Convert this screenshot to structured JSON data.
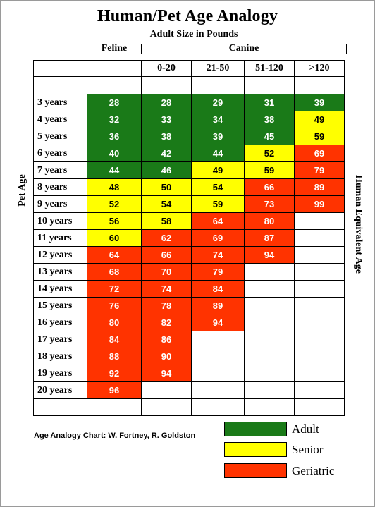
{
  "header": {
    "title": "Human/Pet Age Analogy",
    "subtitle": "Adult Size in Pounds",
    "feline_label": "Feline",
    "canine_label": "Canine"
  },
  "axes": {
    "left_label": "Pet Age",
    "right_label": "Human Equivalent Age"
  },
  "credit": "Age Analogy Chart:  W. Fortney, R. Goldston",
  "colors": {
    "adult": "#1a7a18",
    "senior": "#ffff00",
    "geriatric": "#ff3300"
  },
  "legend": [
    {
      "key": "adult",
      "label": "Adult"
    },
    {
      "key": "senior",
      "label": "Senior"
    },
    {
      "key": "geriatric",
      "label": "Geriatric"
    }
  ],
  "chart_data": {
    "type": "table",
    "title": "Human/Pet Age Analogy",
    "columns": [
      "Feline",
      "0-20",
      "21-50",
      "51-120",
      ">120"
    ],
    "column_headers": [
      "",
      "0-20",
      "21-50",
      "51-120",
      ">120"
    ],
    "row_labels": [
      "3 years",
      "4 years",
      "5 years",
      "6 years",
      "7 years",
      "8 years",
      "9 years",
      "10 years",
      "11 years",
      "12 years",
      "13 years",
      "14 years",
      "15 years",
      "16 years",
      "17 years",
      "18 years",
      "19 years",
      "20 years"
    ],
    "values": [
      [
        28,
        28,
        29,
        31,
        39
      ],
      [
        32,
        33,
        34,
        38,
        49
      ],
      [
        36,
        38,
        39,
        45,
        59
      ],
      [
        40,
        42,
        44,
        52,
        69
      ],
      [
        44,
        46,
        49,
        59,
        79
      ],
      [
        48,
        50,
        54,
        66,
        89
      ],
      [
        52,
        54,
        59,
        73,
        99
      ],
      [
        56,
        58,
        64,
        80,
        null
      ],
      [
        60,
        62,
        69,
        87,
        null
      ],
      [
        64,
        66,
        74,
        94,
        null
      ],
      [
        68,
        70,
        79,
        null,
        null
      ],
      [
        72,
        74,
        84,
        null,
        null
      ],
      [
        76,
        78,
        89,
        null,
        null
      ],
      [
        80,
        82,
        94,
        null,
        null
      ],
      [
        84,
        86,
        null,
        null,
        null
      ],
      [
        88,
        90,
        null,
        null,
        null
      ],
      [
        92,
        94,
        null,
        null,
        null
      ],
      [
        96,
        null,
        null,
        null,
        null
      ]
    ],
    "stages": [
      [
        "adult",
        "adult",
        "adult",
        "adult",
        "adult"
      ],
      [
        "adult",
        "adult",
        "adult",
        "adult",
        "senior"
      ],
      [
        "adult",
        "adult",
        "adult",
        "adult",
        "senior"
      ],
      [
        "adult",
        "adult",
        "adult",
        "senior",
        "geriatric"
      ],
      [
        "adult",
        "adult",
        "senior",
        "senior",
        "geriatric"
      ],
      [
        "senior",
        "senior",
        "senior",
        "geriatric",
        "geriatric"
      ],
      [
        "senior",
        "senior",
        "senior",
        "geriatric",
        "geriatric"
      ],
      [
        "senior",
        "senior",
        "geriatric",
        "geriatric",
        null
      ],
      [
        "senior",
        "geriatric",
        "geriatric",
        "geriatric",
        null
      ],
      [
        "geriatric",
        "geriatric",
        "geriatric",
        "geriatric",
        null
      ],
      [
        "geriatric",
        "geriatric",
        "geriatric",
        null,
        null
      ],
      [
        "geriatric",
        "geriatric",
        "geriatric",
        null,
        null
      ],
      [
        "geriatric",
        "geriatric",
        "geriatric",
        null,
        null
      ],
      [
        "geriatric",
        "geriatric",
        "geriatric",
        null,
        null
      ],
      [
        "geriatric",
        "geriatric",
        null,
        null,
        null
      ],
      [
        "geriatric",
        "geriatric",
        null,
        null,
        null
      ],
      [
        "geriatric",
        "geriatric",
        null,
        null,
        null
      ],
      [
        "geriatric",
        null,
        null,
        null,
        null
      ]
    ],
    "xlabel": "Adult Size in Pounds",
    "ylabel": "Pet Age",
    "y2label": "Human Equivalent Age",
    "legend_position": "bottom-right"
  }
}
